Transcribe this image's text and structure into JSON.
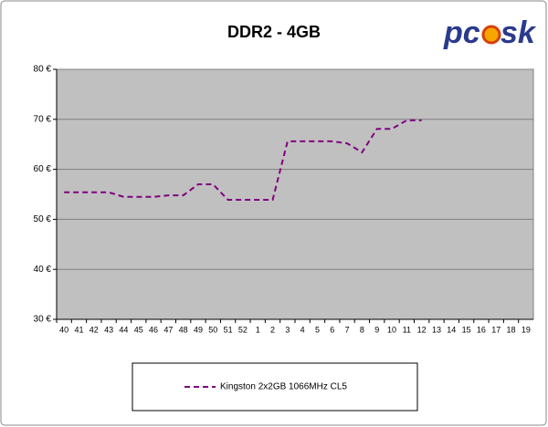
{
  "logo": {
    "left": "pc",
    "right": "sk"
  },
  "chart_data": {
    "type": "line",
    "title": "DDR2 - 4GB",
    "categories": [
      "40",
      "41",
      "42",
      "43",
      "44",
      "45",
      "46",
      "47",
      "48",
      "49",
      "50",
      "51",
      "52",
      "1",
      "2",
      "3",
      "4",
      "5",
      "6",
      "7",
      "8",
      "9",
      "10",
      "11",
      "12",
      "13",
      "14",
      "15",
      "16",
      "17",
      "18",
      "19"
    ],
    "series": [
      {
        "name": "Kingston 2x2GB 1066MHz CL5",
        "color": "#800080",
        "dashed": true,
        "values": [
          55.4,
          55.4,
          55.4,
          55.4,
          54.5,
          54.5,
          54.5,
          54.8,
          54.8,
          57.0,
          57.0,
          53.9,
          53.9,
          53.9,
          53.9,
          65.6,
          65.6,
          65.6,
          65.6,
          65.2,
          63.4,
          68.1,
          68.1,
          69.8,
          69.8,
          null,
          null,
          null,
          null,
          null,
          null,
          null
        ]
      }
    ],
    "ylim": [
      30,
      80
    ],
    "yticks": [
      {
        "value": 30,
        "label": "30 €"
      },
      {
        "value": 40,
        "label": "40 €"
      },
      {
        "value": 50,
        "label": "50 €"
      },
      {
        "value": 60,
        "label": "60 €"
      },
      {
        "value": 70,
        "label": "70 €"
      },
      {
        "value": 80,
        "label": "80 €"
      }
    ],
    "grid": true,
    "plot_background": "#c0c0c0",
    "legend": "bottom"
  }
}
